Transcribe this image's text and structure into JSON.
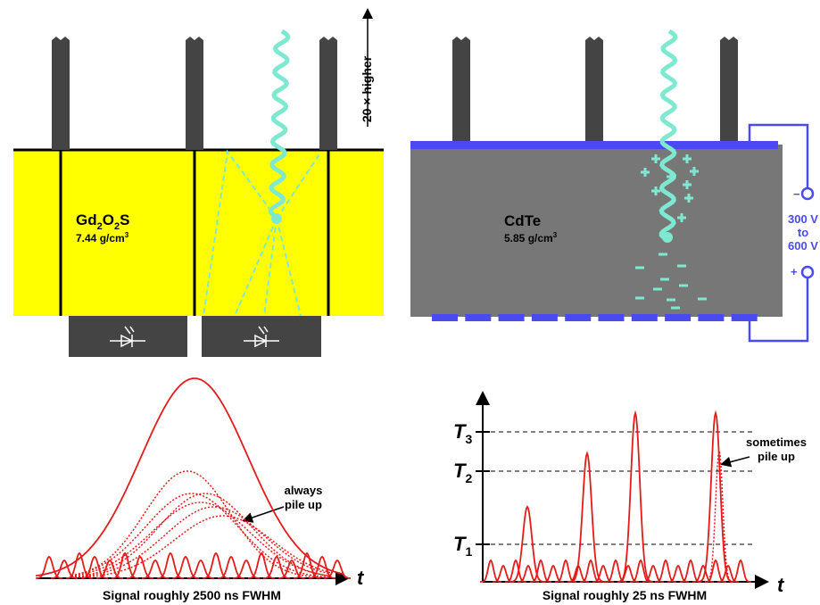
{
  "left_panel": {
    "arrow_label": "20 × higher",
    "material": [
      "Gd",
      "2",
      "O",
      "2",
      "S"
    ],
    "density": [
      "7.44 g/cm",
      "3"
    ],
    "callout": [
      "always",
      "pile up"
    ],
    "axis_label": "t",
    "caption": "Signal roughly 2500 ns FWHM"
  },
  "right_panel": {
    "material": "CdTe",
    "density": [
      "5.85 g/cm",
      "3"
    ],
    "terminals": [
      "−",
      "+"
    ],
    "voltage": [
      "300 V",
      "to",
      "600 V"
    ],
    "thresholds": [
      [
        "T",
        "3"
      ],
      [
        "T",
        "2"
      ],
      [
        "T",
        "1"
      ]
    ],
    "callout": [
      "sometimes",
      "pile up"
    ],
    "axis_label": "t",
    "caption": "Signal roughly 25 ns FWHM"
  }
}
